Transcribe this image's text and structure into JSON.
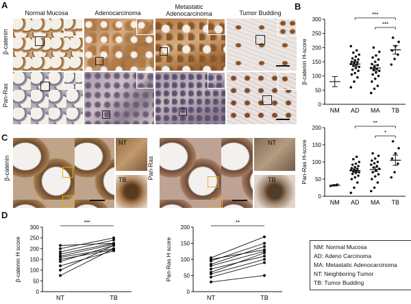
{
  "panels": {
    "A": "A",
    "B": "B",
    "C": "C",
    "D": "D"
  },
  "panelA": {
    "columns": [
      "Normal Mucosa",
      "Adenocarcinoma",
      "Metastatic Adenocarcinoma",
      "Tumor Budding"
    ],
    "rows": [
      "β-catenin",
      "Pan-Ras"
    ]
  },
  "panelC": {
    "rows": [
      "β-catenin",
      "Pan-Ras"
    ],
    "inset_labels": [
      "NT",
      "TB"
    ]
  },
  "legend": [
    "NM: Normal Mucosa",
    "AD: Adeno Carcinoma",
    "MA: Metastatic Adenocarcinoma",
    "NT: Neighboring Tumor",
    "TB: Tumor Budding"
  ],
  "colors": {
    "yellow_box": "#e0b000",
    "point": "#111111"
  },
  "chart_data": [
    {
      "type": "scatter",
      "ylabel": "β-catenin H-score",
      "ylim": [
        0,
        300
      ],
      "yticks": [
        0,
        50,
        100,
        150,
        200,
        250,
        300
      ],
      "categories": [
        "NM",
        "AD",
        "MA",
        "TB"
      ],
      "means": [
        80,
        142,
        128,
        192
      ],
      "sem": [
        18,
        8,
        10,
        15
      ],
      "points": {
        "NM": [],
        "AD": [
          60,
          80,
          95,
          105,
          110,
          118,
          122,
          128,
          132,
          136,
          140,
          142,
          145,
          148,
          150,
          155,
          158,
          162,
          168,
          175,
          182,
          190,
          205
        ],
        "MA": [
          40,
          55,
          65,
          80,
          90,
          100,
          105,
          112,
          118,
          122,
          125,
          128,
          132,
          138,
          142,
          150,
          158,
          165,
          172,
          185,
          200
        ],
        "TB": [
          140,
          160,
          175,
          190,
          205,
          220,
          235
        ]
      },
      "significance": [
        {
          "pair": [
            "AD",
            "TB"
          ],
          "label": "***"
        },
        {
          "pair": [
            "MA",
            "TB"
          ],
          "label": "***"
        }
      ]
    },
    {
      "type": "scatter",
      "ylabel": "Pan-Ras H-score",
      "ylim": [
        0,
        200
      ],
      "yticks": [
        0,
        50,
        100,
        150,
        200
      ],
      "categories": [
        "NM",
        "AD",
        "MA",
        "TB"
      ],
      "means": [
        32,
        75,
        78,
        105
      ],
      "sem": [
        2,
        5,
        6,
        15
      ],
      "points": {
        "NM": [
          30,
          32,
          34
        ],
        "AD": [
          10,
          25,
          40,
          50,
          55,
          60,
          65,
          68,
          70,
          72,
          74,
          76,
          78,
          80,
          82,
          85,
          88,
          92,
          95,
          100,
          108,
          115
        ],
        "MA": [
          15,
          25,
          40,
          50,
          58,
          64,
          70,
          75,
          80,
          84,
          88,
          92,
          96,
          100,
          104,
          110,
          118,
          125
        ],
        "TB": [
          55,
          70,
          95,
          110,
          125,
          140,
          160
        ]
      },
      "significance": [
        {
          "pair": [
            "AD",
            "TB"
          ],
          "label": "**"
        },
        {
          "pair": [
            "MA",
            "TB"
          ],
          "label": "*"
        }
      ]
    },
    {
      "type": "line",
      "ylabel": "β-catenin H score",
      "ylim": [
        0,
        300
      ],
      "yticks": [
        0,
        50,
        100,
        150,
        200,
        250,
        300
      ],
      "x": [
        "NT",
        "TB"
      ],
      "pairs": [
        [
          75,
          200
        ],
        [
          100,
          215
        ],
        [
          120,
          190
        ],
        [
          140,
          215
        ],
        [
          150,
          195
        ],
        [
          160,
          200
        ],
        [
          165,
          220
        ],
        [
          175,
          225
        ],
        [
          185,
          240
        ],
        [
          200,
          250
        ],
        [
          215,
          225
        ]
      ],
      "significance": "***"
    },
    {
      "type": "line",
      "ylabel": "Pan-Ras H score",
      "ylim": [
        0,
        200
      ],
      "yticks": [
        0,
        50,
        100,
        150,
        200
      ],
      "x": [
        "NT",
        "TB"
      ],
      "pairs": [
        [
          30,
          50
        ],
        [
          45,
          90
        ],
        [
          55,
          100
        ],
        [
          60,
          120
        ],
        [
          70,
          110
        ],
        [
          80,
          125
        ],
        [
          85,
          140
        ],
        [
          95,
          150
        ],
        [
          100,
          130
        ],
        [
          105,
          170
        ]
      ],
      "significance": "**"
    }
  ]
}
